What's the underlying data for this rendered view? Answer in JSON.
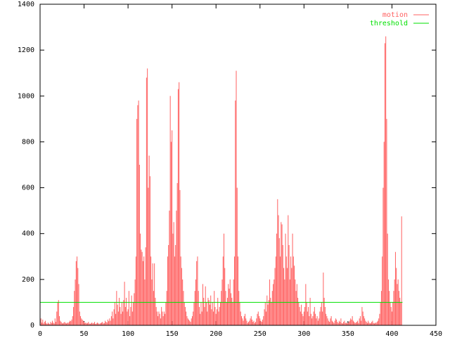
{
  "chart_data": {
    "type": "impulse",
    "xlim": [
      0,
      450
    ],
    "xticks": [
      0,
      50,
      100,
      150,
      200,
      250,
      300,
      350,
      400,
      450
    ],
    "ylim": [
      0,
      1400
    ],
    "yticks": [
      0,
      200,
      400,
      600,
      800,
      1000,
      1200,
      1400
    ],
    "legend": "upper right",
    "series": [
      {
        "name": "motion",
        "color": "#ff6060",
        "x": [
          0,
          1,
          2,
          3,
          4,
          5,
          6,
          7,
          8,
          9,
          10,
          11,
          12,
          13,
          14,
          15,
          16,
          17,
          18,
          19,
          20,
          21,
          22,
          23,
          24,
          25,
          26,
          27,
          28,
          29,
          30,
          31,
          32,
          33,
          34,
          35,
          36,
          37,
          38,
          39,
          40,
          41,
          42,
          43,
          44,
          45,
          46,
          47,
          48,
          49,
          50,
          51,
          52,
          53,
          54,
          55,
          56,
          57,
          58,
          59,
          60,
          61,
          62,
          63,
          64,
          65,
          66,
          67,
          68,
          69,
          70,
          71,
          72,
          73,
          74,
          75,
          76,
          77,
          78,
          79,
          80,
          81,
          82,
          83,
          84,
          85,
          86,
          87,
          88,
          89,
          90,
          91,
          92,
          93,
          94,
          95,
          96,
          97,
          98,
          99,
          100,
          101,
          102,
          103,
          104,
          105,
          106,
          107,
          108,
          109,
          110,
          111,
          112,
          113,
          114,
          115,
          116,
          117,
          118,
          119,
          120,
          121,
          122,
          123,
          124,
          125,
          126,
          127,
          128,
          129,
          130,
          131,
          132,
          133,
          134,
          135,
          136,
          137,
          138,
          139,
          140,
          141,
          142,
          143,
          144,
          145,
          146,
          147,
          148,
          149,
          150,
          151,
          152,
          153,
          154,
          155,
          156,
          157,
          158,
          159,
          160,
          161,
          162,
          163,
          164,
          165,
          166,
          167,
          168,
          169,
          170,
          171,
          172,
          173,
          174,
          175,
          176,
          177,
          178,
          179,
          180,
          181,
          182,
          183,
          184,
          185,
          186,
          187,
          188,
          189,
          190,
          191,
          192,
          193,
          194,
          195,
          196,
          197,
          198,
          199,
          200,
          201,
          202,
          203,
          204,
          205,
          206,
          207,
          208,
          209,
          210,
          211,
          212,
          213,
          214,
          215,
          216,
          217,
          218,
          219,
          220,
          221,
          222,
          223,
          224,
          225,
          226,
          227,
          228,
          229,
          230,
          231,
          232,
          233,
          234,
          235,
          236,
          237,
          238,
          239,
          240,
          241,
          242,
          243,
          244,
          245,
          246,
          247,
          248,
          249,
          250,
          251,
          252,
          253,
          254,
          255,
          256,
          257,
          258,
          259,
          260,
          261,
          262,
          263,
          264,
          265,
          266,
          267,
          268,
          269,
          270,
          271,
          272,
          273,
          274,
          275,
          276,
          277,
          278,
          279,
          280,
          281,
          282,
          283,
          284,
          285,
          286,
          287,
          288,
          289,
          290,
          291,
          292,
          293,
          294,
          295,
          296,
          297,
          298,
          299,
          300,
          301,
          302,
          303,
          304,
          305,
          306,
          307,
          308,
          309,
          310,
          311,
          312,
          313,
          314,
          315,
          316,
          317,
          318,
          319,
          320,
          321,
          322,
          323,
          324,
          325,
          326,
          327,
          328,
          329,
          330,
          331,
          332,
          333,
          334,
          335,
          336,
          337,
          338,
          339,
          340,
          341,
          342,
          343,
          344,
          345,
          346,
          347,
          348,
          349,
          350,
          351,
          352,
          353,
          354,
          355,
          356,
          357,
          358,
          359,
          360,
          361,
          362,
          363,
          364,
          365,
          366,
          367,
          368,
          369,
          370,
          371,
          372,
          373,
          374,
          375,
          376,
          377,
          378,
          379,
          380,
          381,
          382,
          383,
          384,
          385,
          386,
          387,
          388,
          389,
          390,
          391,
          392,
          393,
          394,
          395,
          396,
          397,
          398,
          399,
          400,
          401,
          402,
          403,
          404,
          405,
          406,
          407,
          408,
          409,
          410,
          411,
          412
        ],
        "values": [
          5,
          30,
          12,
          25,
          8,
          15,
          20,
          10,
          6,
          12,
          8,
          5,
          15,
          10,
          20,
          12,
          8,
          30,
          15,
          60,
          100,
          110,
          40,
          20,
          15,
          10,
          8,
          12,
          15,
          10,
          8,
          12,
          10,
          15,
          20,
          18,
          25,
          40,
          80,
          150,
          200,
          280,
          300,
          250,
          180,
          60,
          40,
          30,
          25,
          20,
          15,
          10,
          12,
          8,
          10,
          15,
          8,
          6,
          10,
          12,
          8,
          10,
          15,
          6,
          8,
          12,
          10,
          5,
          8,
          10,
          12,
          15,
          8,
          10,
          20,
          15,
          12,
          25,
          18,
          30,
          20,
          40,
          60,
          30,
          70,
          100,
          50,
          150,
          90,
          60,
          120,
          80,
          50,
          100,
          60,
          110,
          190,
          80,
          120,
          60,
          70,
          150,
          40,
          80,
          130,
          60,
          100,
          140,
          200,
          300,
          900,
          960,
          980,
          700,
          400,
          330,
          320,
          280,
          300,
          200,
          340,
          1080,
          1120,
          600,
          740,
          650,
          300,
          200,
          270,
          150,
          270,
          120,
          80,
          60,
          40,
          60,
          50,
          30,
          80,
          60,
          40,
          60,
          50,
          100,
          150,
          300,
          350,
          500,
          1000,
          800,
          850,
          400,
          450,
          300,
          350,
          500,
          620,
          1030,
          1060,
          590,
          300,
          250,
          200,
          150,
          100,
          80,
          60,
          40,
          30,
          25,
          20,
          15,
          30,
          40,
          60,
          100,
          150,
          200,
          280,
          300,
          150,
          80,
          50,
          100,
          60,
          180,
          120,
          80,
          170,
          100,
          60,
          120,
          110,
          90,
          130,
          70,
          100,
          60,
          150,
          80,
          50,
          70,
          120,
          60,
          80,
          100,
          150,
          200,
          300,
          400,
          250,
          150,
          100,
          120,
          180,
          160,
          200,
          140,
          120,
          100,
          200,
          300,
          980,
          1110,
          600,
          300,
          150,
          100,
          60,
          40,
          30,
          20,
          40,
          50,
          30,
          20,
          10,
          15,
          20,
          30,
          40,
          25,
          15,
          20,
          10,
          15,
          30,
          50,
          60,
          40,
          30,
          20,
          15,
          25,
          40,
          70,
          100,
          60,
          130,
          90,
          110,
          200,
          120,
          100,
          150,
          180,
          200,
          250,
          300,
          400,
          550,
          480,
          380,
          300,
          450,
          440,
          350,
          250,
          200,
          400,
          300,
          250,
          480,
          350,
          200,
          300,
          250,
          400,
          300,
          260,
          200,
          150,
          180,
          120,
          100,
          80,
          60,
          90,
          50,
          40,
          60,
          80,
          180,
          100,
          60,
          80,
          40,
          120,
          50,
          30,
          40,
          60,
          80,
          50,
          30,
          40,
          20,
          30,
          60,
          80,
          100,
          60,
          230,
          120,
          80,
          50,
          40,
          30,
          20,
          15,
          30,
          40,
          20,
          15,
          10,
          20,
          30,
          25,
          15,
          10,
          20,
          15,
          30,
          10,
          8,
          15,
          20,
          10,
          12,
          8,
          10,
          15,
          20,
          30,
          25,
          40,
          20,
          15,
          10,
          12,
          15,
          20,
          10,
          30,
          40,
          20,
          80,
          60,
          40,
          30,
          20,
          15,
          10,
          20,
          12,
          8,
          10,
          15,
          20,
          10,
          8,
          12,
          10,
          15,
          20,
          30,
          50,
          100,
          150,
          300,
          600,
          800,
          1230,
          1260,
          900,
          400,
          200,
          150,
          100,
          80,
          60,
          100,
          150,
          200,
          320,
          250,
          180,
          200,
          150,
          120,
          100,
          475,
          0
        ]
      },
      {
        "name": "threshold",
        "color": "#00e000",
        "x": [
          0,
          412
        ],
        "values": [
          100,
          100
        ]
      }
    ]
  }
}
